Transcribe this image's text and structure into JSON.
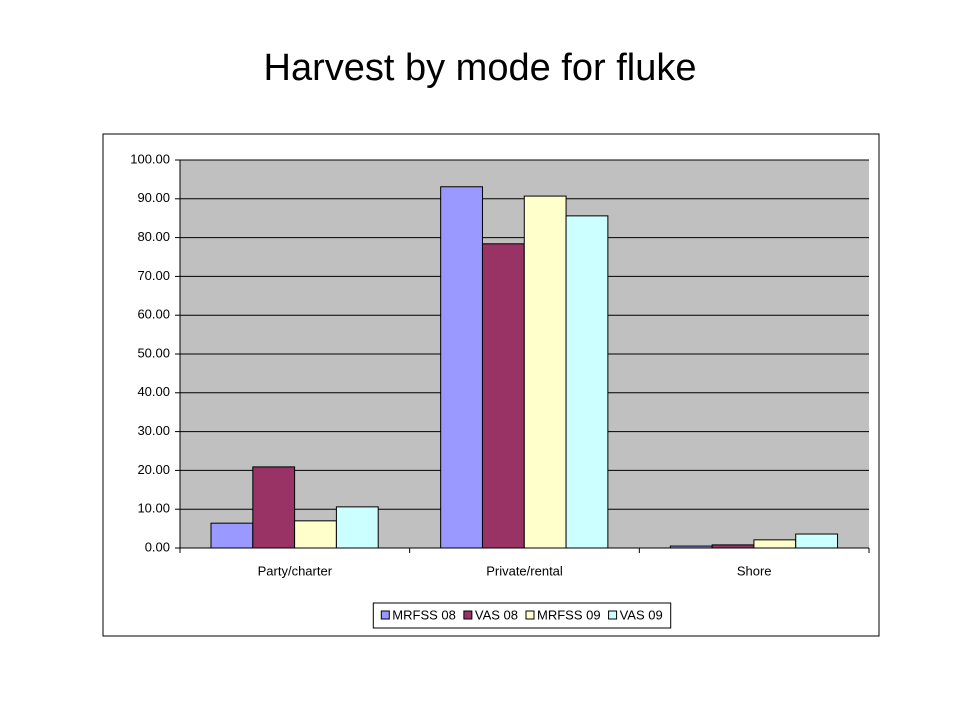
{
  "chart_data": {
    "type": "bar",
    "title": "Harvest by mode for fluke",
    "categories": [
      "Party/charter",
      "Private/rental",
      "Shore"
    ],
    "series": [
      {
        "name": "MRFSS 08",
        "color": "#9999ff",
        "values": [
          6.4,
          93.1,
          0.5
        ]
      },
      {
        "name": "VAS 08",
        "color": "#993366",
        "values": [
          20.9,
          78.4,
          0.8
        ]
      },
      {
        "name": "MRFSS 09",
        "color": "#ffffcc",
        "values": [
          7,
          90.7,
          2.1
        ]
      },
      {
        "name": "VAS 09",
        "color": "#ccffff",
        "values": [
          10.6,
          85.6,
          3.6
        ]
      }
    ],
    "ylim": [
      0,
      100
    ],
    "yticks": [
      {
        "value": 0,
        "label": "0.00"
      },
      {
        "value": 10,
        "label": "10.00"
      },
      {
        "value": 20,
        "label": "20.00"
      },
      {
        "value": 30,
        "label": "30.00"
      },
      {
        "value": 40,
        "label": "40.00"
      },
      {
        "value": 50,
        "label": "50.00"
      },
      {
        "value": 60,
        "label": "60.00"
      },
      {
        "value": 70,
        "label": "70.00"
      },
      {
        "value": 80,
        "label": "80.00"
      },
      {
        "value": 90,
        "label": "90.00"
      },
      {
        "value": 100,
        "label": "100.00"
      }
    ],
    "grid": true,
    "legend": "bottom"
  }
}
